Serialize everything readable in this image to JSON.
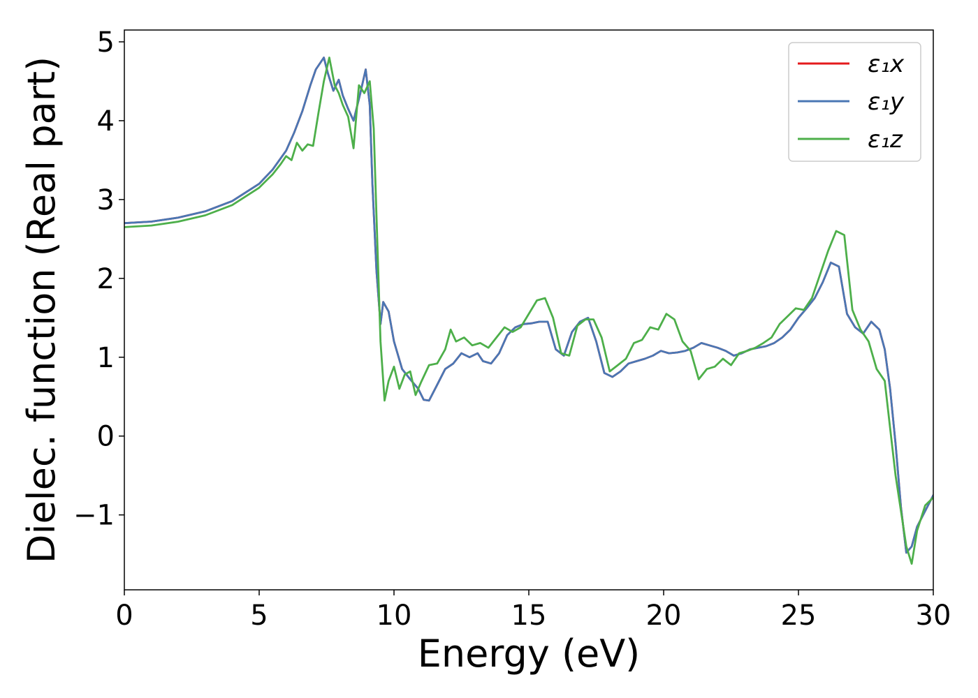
{
  "chart_data": {
    "type": "line",
    "xlabel": "Energy (eV)",
    "ylabel": "Dielec. function (Real part)",
    "xlim": [
      0,
      30
    ],
    "ylim": [
      -1.95,
      5.15
    ],
    "xticks": [
      0,
      5,
      10,
      15,
      20,
      25,
      30
    ],
    "xtick_labels": [
      "0",
      "5",
      "10",
      "15",
      "20",
      "25",
      "30"
    ],
    "yticks": [
      -1,
      0,
      1,
      2,
      3,
      4,
      5
    ],
    "ytick_labels": [
      "−1",
      "0",
      "1",
      "2",
      "3",
      "4",
      "5"
    ],
    "grid": false,
    "legend_position": "top-right",
    "series": [
      {
        "name": "ε₁x",
        "color": "#e41a1c",
        "x": [
          0,
          1,
          2,
          3,
          4,
          5,
          5.5,
          6,
          6.3,
          6.6,
          6.9,
          7.1,
          7.4,
          7.55,
          7.75,
          7.95,
          8.1,
          8.3,
          8.5,
          8.75,
          8.95,
          9.1,
          9.2,
          9.35,
          9.5,
          9.6,
          9.8,
          10,
          10.3,
          10.6,
          10.9,
          11.1,
          11.3,
          11.6,
          11.9,
          12.2,
          12.5,
          12.8,
          13.1,
          13.3,
          13.6,
          13.9,
          14.2,
          14.5,
          14.8,
          15.1,
          15.4,
          15.7,
          16,
          16.3,
          16.6,
          16.9,
          17.2,
          17.5,
          17.8,
          18.1,
          18.4,
          18.7,
          19,
          19.3,
          19.6,
          19.9,
          20.2,
          20.5,
          20.8,
          21.1,
          21.4,
          21.7,
          22,
          22.3,
          22.6,
          22.9,
          23.2,
          23.5,
          23.8,
          24.1,
          24.4,
          24.7,
          25,
          25.3,
          25.6,
          25.9,
          26.2,
          26.5,
          26.8,
          27.1,
          27.4,
          27.7,
          28,
          28.2,
          28.4,
          28.6,
          28.8,
          29,
          29.2,
          29.4,
          29.7,
          30
        ],
        "values": [
          2.7,
          2.72,
          2.77,
          2.85,
          2.98,
          3.2,
          3.38,
          3.62,
          3.85,
          4.12,
          4.45,
          4.65,
          4.8,
          4.6,
          4.38,
          4.52,
          4.32,
          4.15,
          4.0,
          4.35,
          4.65,
          4.2,
          3.2,
          2.1,
          1.42,
          1.7,
          1.58,
          1.2,
          0.85,
          0.72,
          0.6,
          0.46,
          0.45,
          0.65,
          0.85,
          0.92,
          1.05,
          1.0,
          1.05,
          0.95,
          0.92,
          1.05,
          1.28,
          1.38,
          1.42,
          1.43,
          1.45,
          1.45,
          1.1,
          1.02,
          1.32,
          1.45,
          1.5,
          1.2,
          0.8,
          0.75,
          0.82,
          0.92,
          0.95,
          0.98,
          1.02,
          1.08,
          1.05,
          1.06,
          1.08,
          1.12,
          1.18,
          1.15,
          1.12,
          1.08,
          1.02,
          1.05,
          1.1,
          1.12,
          1.14,
          1.18,
          1.25,
          1.35,
          1.5,
          1.62,
          1.75,
          1.95,
          2.2,
          2.15,
          1.55,
          1.38,
          1.3,
          1.45,
          1.35,
          1.1,
          0.6,
          -0.1,
          -0.9,
          -1.48,
          -1.4,
          -1.15,
          -0.95,
          -0.75
        ]
      },
      {
        "name": "ε₁y",
        "color": "#4a77b4",
        "x": [
          0,
          1,
          2,
          3,
          4,
          5,
          5.5,
          6,
          6.3,
          6.6,
          6.9,
          7.1,
          7.4,
          7.55,
          7.75,
          7.95,
          8.1,
          8.3,
          8.5,
          8.75,
          8.95,
          9.1,
          9.2,
          9.35,
          9.5,
          9.6,
          9.8,
          10,
          10.3,
          10.6,
          10.9,
          11.1,
          11.3,
          11.6,
          11.9,
          12.2,
          12.5,
          12.8,
          13.1,
          13.3,
          13.6,
          13.9,
          14.2,
          14.5,
          14.8,
          15.1,
          15.4,
          15.7,
          16,
          16.3,
          16.6,
          16.9,
          17.2,
          17.5,
          17.8,
          18.1,
          18.4,
          18.7,
          19,
          19.3,
          19.6,
          19.9,
          20.2,
          20.5,
          20.8,
          21.1,
          21.4,
          21.7,
          22,
          22.3,
          22.6,
          22.9,
          23.2,
          23.5,
          23.8,
          24.1,
          24.4,
          24.7,
          25,
          25.3,
          25.6,
          25.9,
          26.2,
          26.5,
          26.8,
          27.1,
          27.4,
          27.7,
          28,
          28.2,
          28.4,
          28.6,
          28.8,
          29,
          29.2,
          29.4,
          29.7,
          30
        ],
        "values": [
          2.7,
          2.72,
          2.77,
          2.85,
          2.98,
          3.2,
          3.38,
          3.62,
          3.85,
          4.12,
          4.45,
          4.65,
          4.8,
          4.6,
          4.38,
          4.52,
          4.32,
          4.15,
          4.0,
          4.35,
          4.65,
          4.2,
          3.2,
          2.1,
          1.42,
          1.7,
          1.58,
          1.2,
          0.85,
          0.72,
          0.6,
          0.46,
          0.45,
          0.65,
          0.85,
          0.92,
          1.05,
          1.0,
          1.05,
          0.95,
          0.92,
          1.05,
          1.28,
          1.38,
          1.42,
          1.43,
          1.45,
          1.45,
          1.1,
          1.02,
          1.32,
          1.45,
          1.5,
          1.2,
          0.8,
          0.75,
          0.82,
          0.92,
          0.95,
          0.98,
          1.02,
          1.08,
          1.05,
          1.06,
          1.08,
          1.12,
          1.18,
          1.15,
          1.12,
          1.08,
          1.02,
          1.05,
          1.1,
          1.12,
          1.14,
          1.18,
          1.25,
          1.35,
          1.5,
          1.62,
          1.75,
          1.95,
          2.2,
          2.15,
          1.55,
          1.38,
          1.3,
          1.45,
          1.35,
          1.1,
          0.6,
          -0.1,
          -0.9,
          -1.48,
          -1.4,
          -1.15,
          -0.95,
          -0.75
        ]
      },
      {
        "name": "ε₁z",
        "color": "#4daf4a",
        "x": [
          0,
          1,
          2,
          3,
          4,
          5,
          5.5,
          5.8,
          6.0,
          6.2,
          6.4,
          6.6,
          6.8,
          7.0,
          7.2,
          7.4,
          7.6,
          7.8,
          7.95,
          8.1,
          8.3,
          8.5,
          8.7,
          8.9,
          9.1,
          9.25,
          9.35,
          9.5,
          9.65,
          9.8,
          10,
          10.2,
          10.4,
          10.6,
          10.8,
          11,
          11.3,
          11.6,
          11.9,
          12.1,
          12.3,
          12.6,
          12.9,
          13.2,
          13.5,
          13.8,
          14.1,
          14.4,
          14.7,
          15,
          15.3,
          15.6,
          15.9,
          16.2,
          16.5,
          16.8,
          17.1,
          17.4,
          17.7,
          18,
          18.3,
          18.6,
          18.9,
          19.2,
          19.5,
          19.8,
          20.1,
          20.4,
          20.7,
          21,
          21.3,
          21.6,
          21.9,
          22.2,
          22.5,
          22.8,
          23.1,
          23.4,
          23.7,
          24,
          24.3,
          24.6,
          24.9,
          25.2,
          25.5,
          25.8,
          26.1,
          26.4,
          26.7,
          27,
          27.3,
          27.6,
          27.9,
          28.2,
          28.4,
          28.6,
          28.8,
          29,
          29.2,
          29.4,
          29.7,
          30
        ],
        "values": [
          2.65,
          2.67,
          2.72,
          2.8,
          2.93,
          3.15,
          3.32,
          3.45,
          3.55,
          3.5,
          3.72,
          3.62,
          3.7,
          3.68,
          4.1,
          4.5,
          4.8,
          4.45,
          4.35,
          4.2,
          4.05,
          3.65,
          4.45,
          4.35,
          4.5,
          3.9,
          2.8,
          1.2,
          0.45,
          0.7,
          0.88,
          0.6,
          0.78,
          0.82,
          0.52,
          0.68,
          0.9,
          0.92,
          1.1,
          1.35,
          1.2,
          1.25,
          1.15,
          1.18,
          1.12,
          1.25,
          1.38,
          1.32,
          1.38,
          1.55,
          1.72,
          1.75,
          1.5,
          1.05,
          1.02,
          1.4,
          1.48,
          1.48,
          1.25,
          0.82,
          0.9,
          0.98,
          1.18,
          1.22,
          1.38,
          1.35,
          1.55,
          1.48,
          1.2,
          1.08,
          0.72,
          0.85,
          0.88,
          0.98,
          0.9,
          1.05,
          1.08,
          1.12,
          1.18,
          1.25,
          1.42,
          1.52,
          1.62,
          1.6,
          1.75,
          2.05,
          2.35,
          2.6,
          2.55,
          1.6,
          1.35,
          1.2,
          0.85,
          0.7,
          0.1,
          -0.5,
          -0.95,
          -1.4,
          -1.62,
          -1.2,
          -0.88,
          -0.78
        ]
      }
    ]
  }
}
